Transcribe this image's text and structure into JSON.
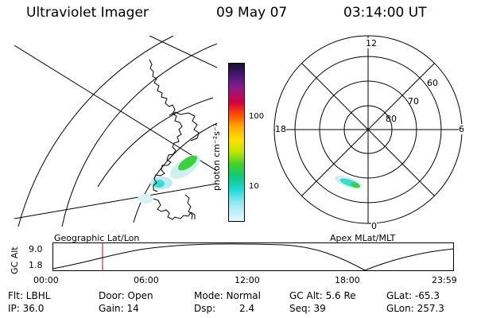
{
  "header": {
    "instrument": "Ultraviolet Imager",
    "date": "09 May 07",
    "time": "03:14:00 UT"
  },
  "colorbar": {
    "label_html": "photon cm⁻²s⁻¹",
    "ticks": [
      "100",
      "10"
    ]
  },
  "polar_plot": {
    "mlt_labels": {
      "top": "12",
      "bottom": "0",
      "left": "18",
      "right": "6"
    },
    "lat_labels": [
      "60",
      "70",
      "80"
    ]
  },
  "timeline": {
    "left_title": "Geographic Lat/Lon",
    "right_title": "Apex MLat/MLT",
    "y_axis_label": "GC Alt",
    "y_ticks": [
      "9.0",
      "1.8"
    ],
    "x_ticks": [
      "00:00",
      "06:00",
      "12:00",
      "18:00",
      "23:59"
    ],
    "marker_time": "03:14"
  },
  "info": {
    "flt": "Flt: LBHL",
    "door": "Door: Open",
    "mode": "Mode: Normal",
    "gc_alt": "GC Alt: 5.6 Re",
    "glat": "GLat: -65.3",
    "ip": "IP: 36.0",
    "gain": "Gain: 14",
    "dsp_label": "Dsp:",
    "dsp_value": "2.4",
    "seq": "Seq: 39",
    "glon": "GLon: 257.3"
  },
  "colors": {
    "marker": "#cc0000",
    "aurora_low": "#33e0d0",
    "aurora_high": "#3ad13a"
  }
}
